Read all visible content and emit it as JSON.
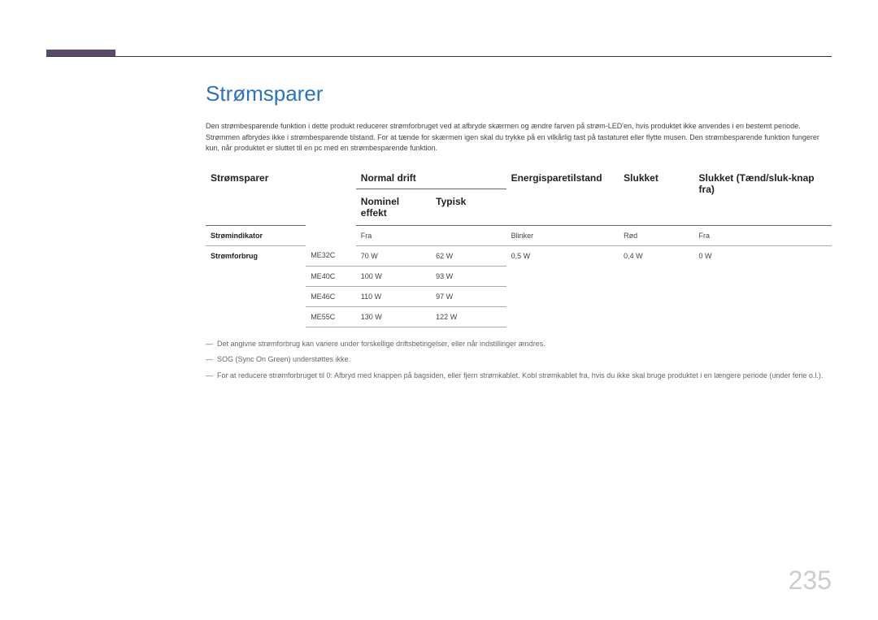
{
  "page": {
    "title": "Strømsparer",
    "intro": "Den strømbesparende funktion i dette produkt reducerer strømforbruget ved at afbryde skærmen og ændre farven på strøm-LED'en, hvis produktet ikke anvendes i en bestemt periode. Strømmen afbrydes ikke i strømbesparende tilstand. For at tænde for skærmen igen skal du trykke på en vilkårlig tast på tastaturet eller flytte musen. Den strømbesparende funktion fungerer kun, når produktet er sluttet til en pc med en strømbesparende funktion.",
    "pageNumber": "235"
  },
  "table": {
    "headers": {
      "col1": "Strømsparer",
      "normal": "Normal drift",
      "energy": "Energisparetilstand",
      "off": "Slukket",
      "offBtn": "Slukket (Tænd/sluk-knap fra)",
      "nominal": "Nominel effekt",
      "typical": "Typisk"
    },
    "rows": {
      "indicator": {
        "label": "Strømindikator",
        "normal": "Fra",
        "energy": "Blinker",
        "off": "Rød",
        "offBtn": "Fra"
      },
      "consumption": {
        "label": "Strømforbrug",
        "models": [
          {
            "name": "ME32C",
            "nominal": "70 W",
            "typical": "62 W",
            "energy": "0,5 W",
            "off": "0,4 W",
            "offBtn": "0 W"
          },
          {
            "name": "ME40C",
            "nominal": "100 W",
            "typical": "93 W",
            "energy": "",
            "off": "",
            "offBtn": ""
          },
          {
            "name": "ME46C",
            "nominal": "110 W",
            "typical": "97 W",
            "energy": "",
            "off": "",
            "offBtn": ""
          },
          {
            "name": "ME55C",
            "nominal": "130 W",
            "typical": "122 W",
            "energy": "",
            "off": "",
            "offBtn": ""
          }
        ]
      }
    }
  },
  "notes": [
    "Det angivne strømforbrug kan variere under forskellige driftsbetingelser, eller når indstillinger ændres.",
    "SOG (Sync On Green) understøttes ikke.",
    "For at reducere strømforbruget til 0: Afbryd med knappen på bagsiden, eller fjern strømkablet. Kobl strømkablet fra, hvis du ikke skal bruge produktet i en længere periode (under ferie o.l.)."
  ]
}
